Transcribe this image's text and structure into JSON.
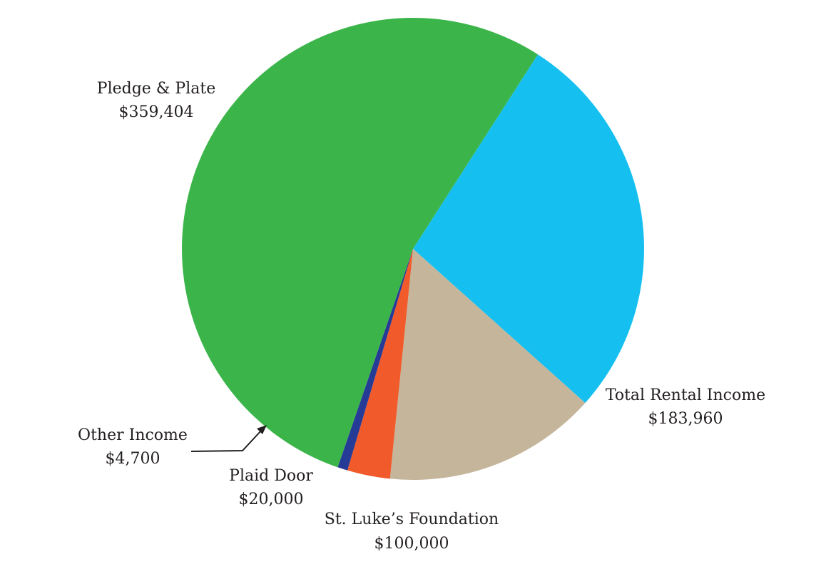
{
  "chart_data": {
    "type": "pie",
    "title": "",
    "slices": [
      {
        "label": "Pledge & Plate",
        "value_label": "$359,404",
        "value": 359404,
        "color": "#3bb54a"
      },
      {
        "label": "Total Rental Income",
        "value_label": "$183,960",
        "value": 183960,
        "color": "#15c0f0"
      },
      {
        "label": "St. Luke’s Foundation",
        "value_label": "$100,000",
        "value": 100000,
        "color": "#c4b59b"
      },
      {
        "label": "Plaid Door",
        "value_label": "$20,000",
        "value": 20000,
        "color": "#f15a2b"
      },
      {
        "label": "Other Income",
        "value_label": "$4,700",
        "value": 4700,
        "color": "#263b96"
      }
    ]
  }
}
